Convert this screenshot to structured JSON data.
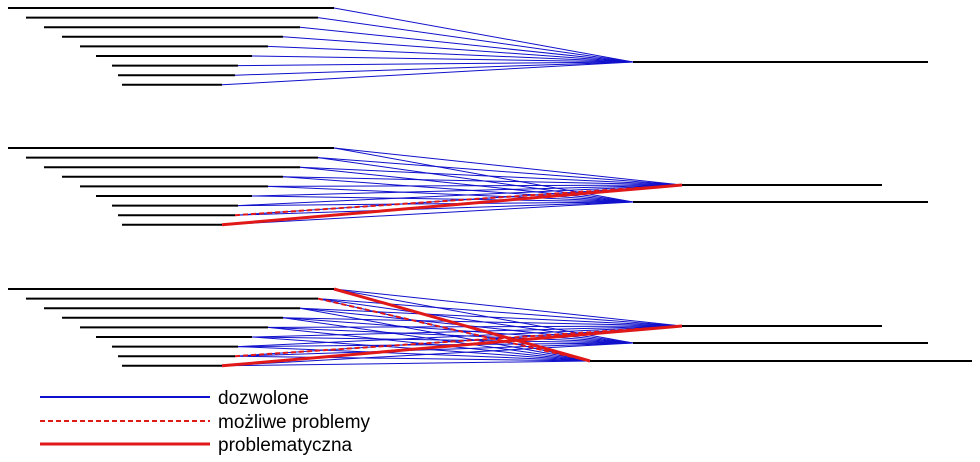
{
  "colors": {
    "allowed": "#1010cc",
    "problem": "#e01818",
    "bars": "#000000"
  },
  "legend": {
    "items": [
      {
        "key": "allowed",
        "label": "dozwolone",
        "style": "solid"
      },
      {
        "key": "possible",
        "label": "możliwe problemy",
        "style": "dashed"
      },
      {
        "key": "problematic",
        "label": "problematyczna",
        "style": "solid-thick"
      }
    ]
  },
  "diagrams": [
    {
      "name": "diagram-one-target",
      "targets": 1,
      "possible_links": [],
      "problematic_links": []
    },
    {
      "name": "diagram-two-targets",
      "targets": 2,
      "possible_links": [
        {
          "from": 7,
          "to": 0
        }
      ],
      "problematic_links": [
        {
          "from": 8,
          "to": 0
        }
      ]
    },
    {
      "name": "diagram-three-targets",
      "targets": 3,
      "possible_links": [
        {
          "from": 1,
          "to": 2
        },
        {
          "from": 7,
          "to": 0
        }
      ],
      "problematic_links": [
        {
          "from": 0,
          "to": 2
        },
        {
          "from": 8,
          "to": 0
        }
      ]
    }
  ]
}
